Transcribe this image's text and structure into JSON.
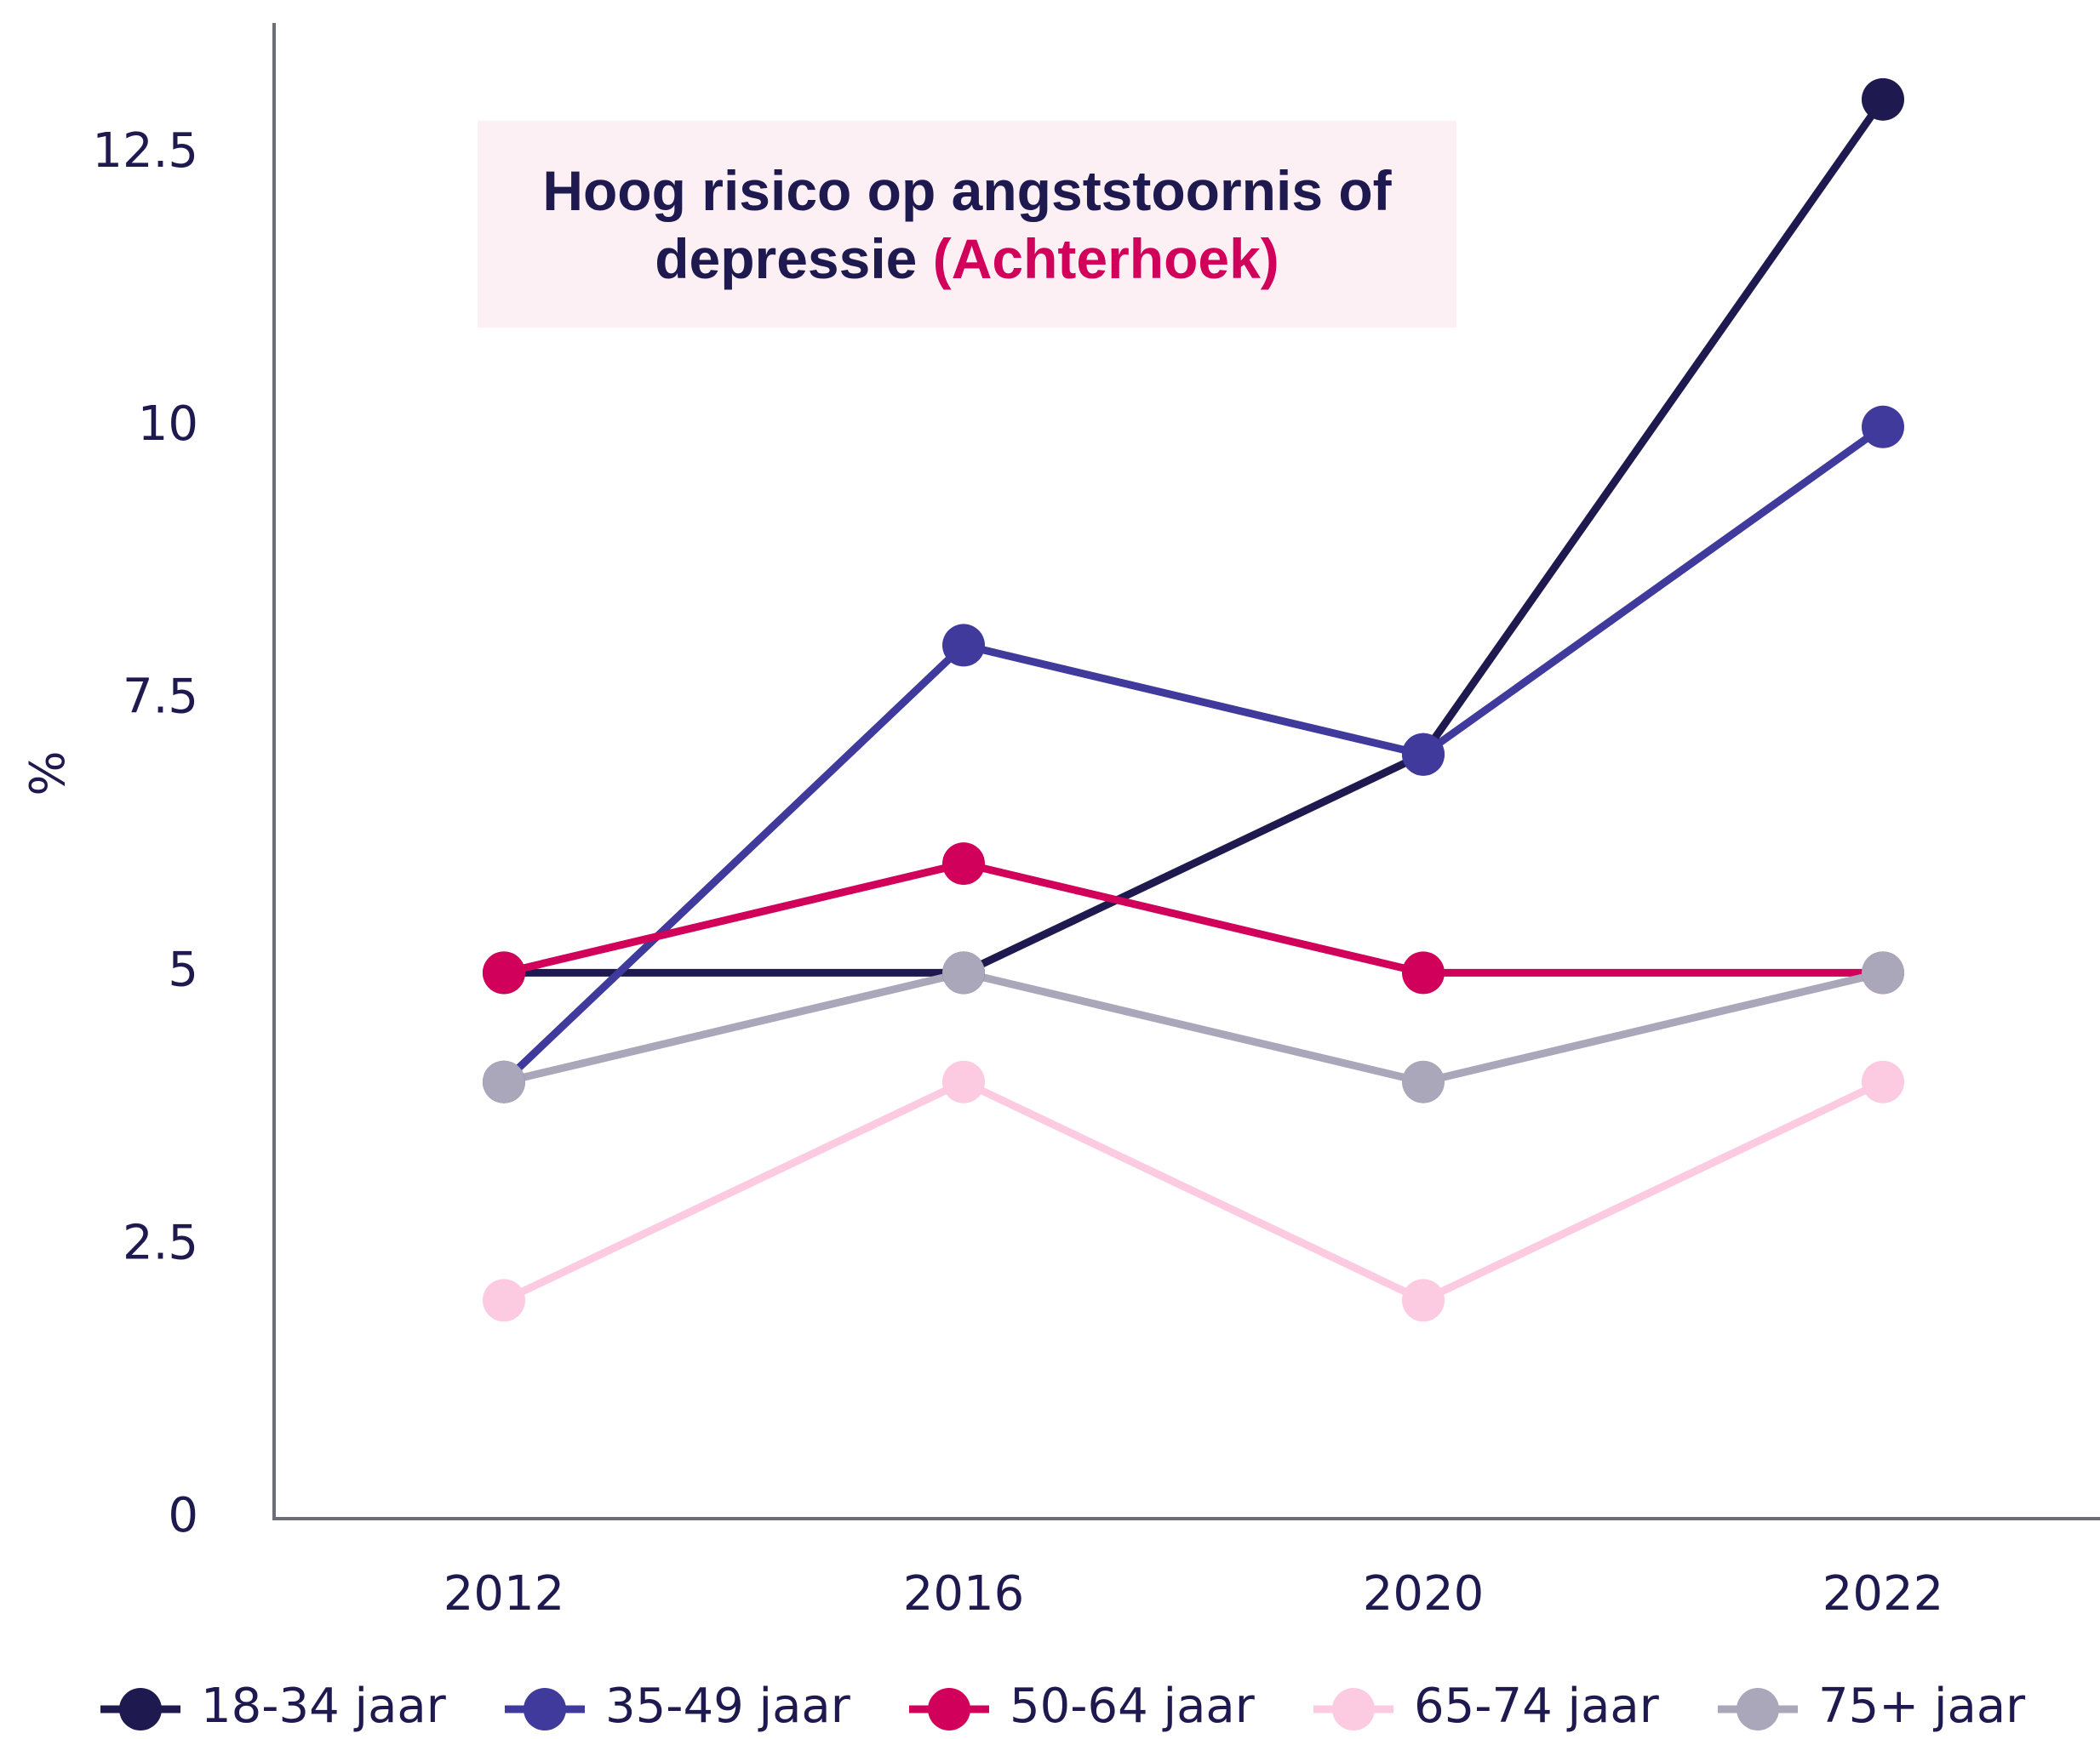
{
  "chart_data": {
    "type": "line",
    "title": "Hoog risico op angststoornis of depressie",
    "title_highlight": "(Achterhoek)",
    "y_label": "%",
    "categories": [
      "2012",
      "2016",
      "2020",
      "2022"
    ],
    "series": [
      {
        "name": "18-34 jaar",
        "color": "#1e1a4f",
        "values": [
          5,
          5,
          7,
          13
        ]
      },
      {
        "name": "35-49 jaar",
        "color": "#3f3a9c",
        "values": [
          4,
          8,
          7,
          10
        ]
      },
      {
        "name": "50-64 jaar",
        "color": "#d1005a",
        "values": [
          5,
          6,
          5,
          5
        ]
      },
      {
        "name": "65-74 jaar",
        "color": "#fccae1",
        "values": [
          2,
          4,
          2,
          4
        ]
      },
      {
        "name": "75+ jaar",
        "color": "#a9a7b9",
        "values": [
          4,
          5,
          4,
          5
        ]
      }
    ],
    "ylim": [
      0,
      13.7
    ],
    "yticks": [
      0,
      2.5,
      5,
      7.5,
      10,
      12.5
    ],
    "grid": false,
    "legend": "bottom"
  }
}
